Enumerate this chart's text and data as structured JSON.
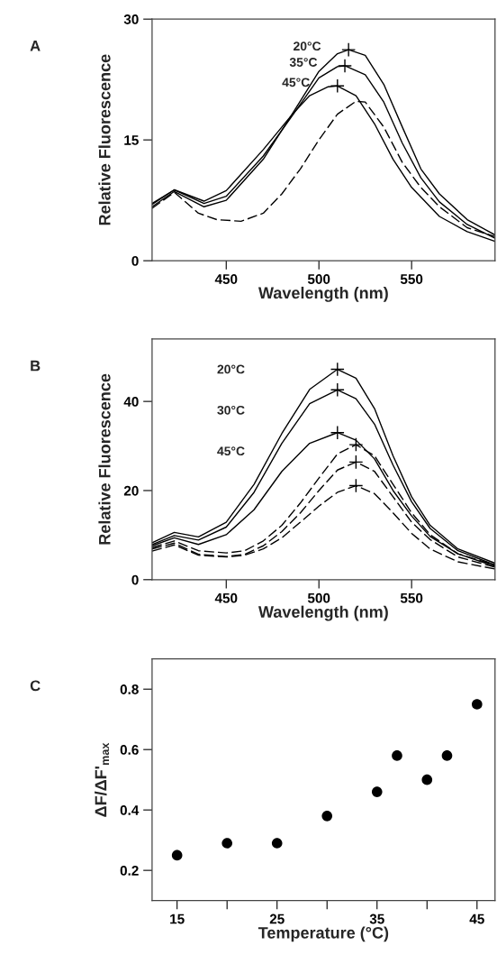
{
  "chart_data": [
    {
      "type": "line",
      "title": "A",
      "xlabel": "Wavelength (nm)",
      "ylabel": "Relative Fluorescence",
      "xlim": [
        410,
        595
      ],
      "xticks": [
        450,
        500,
        550
      ],
      "ylim": [
        0,
        30
      ],
      "yticks": [
        0,
        15,
        30
      ],
      "grid": false,
      "legend": false,
      "series": [
        {
          "type": "line",
          "line_style": "solid",
          "color": "#000000",
          "x": [
            410,
            422,
            438,
            450,
            470,
            485,
            500,
            510,
            516,
            525,
            535,
            545,
            555,
            565,
            580,
            595
          ],
          "values": [
            7.1,
            8.8,
            7.4,
            8.7,
            13.8,
            18.0,
            23.5,
            25.7,
            26.2,
            25.5,
            21.9,
            16.6,
            11.4,
            8.3,
            5.1,
            3.2
          ]
        },
        {
          "type": "line",
          "line_style": "solid",
          "color": "#000000",
          "x": [
            410,
            422,
            438,
            450,
            470,
            485,
            500,
            510,
            514,
            525,
            535,
            545,
            555,
            565,
            580,
            595
          ],
          "values": [
            7.0,
            8.8,
            7.1,
            8.0,
            13.0,
            17.8,
            22.7,
            24.1,
            24.2,
            23.1,
            19.7,
            14.6,
            10.3,
            7.3,
            4.5,
            2.8
          ]
        },
        {
          "type": "line",
          "line_style": "solid",
          "color": "#000000",
          "x": [
            410,
            422,
            438,
            450,
            470,
            485,
            495,
            505,
            510,
            520,
            530,
            540,
            550,
            565,
            580,
            595
          ],
          "values": [
            6.7,
            8.6,
            6.7,
            7.5,
            12.6,
            18.0,
            20.5,
            21.6,
            21.7,
            20.5,
            17.0,
            12.6,
            9.1,
            5.5,
            3.6,
            2.4
          ]
        },
        {
          "type": "line",
          "line_style": "dashed",
          "color": "#000000",
          "x": [
            410,
            422,
            435,
            445,
            458,
            470,
            480,
            490,
            500,
            510,
            520,
            525,
            535,
            545,
            555,
            565,
            580,
            595
          ],
          "values": [
            6.5,
            8.5,
            5.9,
            5.1,
            4.9,
            5.9,
            8.3,
            11.4,
            15.0,
            18.2,
            19.8,
            19.7,
            16.6,
            12.2,
            9.1,
            6.7,
            4.1,
            3.0
          ]
        },
        {
          "type": "scatter",
          "marker": "cross",
          "color": "#000000",
          "x": [
            516,
            514,
            510
          ],
          "values": [
            26.2,
            24.2,
            21.7
          ]
        }
      ],
      "annotations": [
        {
          "text": "20°C",
          "x": 516,
          "y": 26.2
        },
        {
          "text": "35°C",
          "x": 514,
          "y": 24.2
        },
        {
          "text": "45°C",
          "x": 510,
          "y": 21.7
        }
      ]
    },
    {
      "type": "line",
      "title": "B",
      "xlabel": "Wavelength (nm)",
      "ylabel": "Relative Fluorescence",
      "xlim": [
        410,
        595
      ],
      "xticks": [
        450,
        500,
        550
      ],
      "ylim": [
        0,
        54
      ],
      "yticks": [
        0,
        20,
        40
      ],
      "grid": false,
      "legend": false,
      "series": [
        {
          "type": "line",
          "line_style": "solid",
          "color": "#000000",
          "x": [
            410,
            422,
            435,
            450,
            465,
            480,
            495,
            510,
            520,
            530,
            540,
            550,
            560,
            575,
            595
          ],
          "values": [
            8.3,
            10.6,
            9.6,
            12.9,
            21.4,
            32.8,
            42.7,
            47.2,
            45.2,
            38.4,
            27.8,
            18.6,
            12.2,
            6.9,
            3.7
          ]
        },
        {
          "type": "line",
          "line_style": "solid",
          "color": "#000000",
          "x": [
            410,
            422,
            435,
            450,
            465,
            480,
            495,
            510,
            520,
            530,
            540,
            550,
            560,
            575,
            595
          ],
          "values": [
            7.9,
            9.9,
            8.9,
            11.8,
            19.6,
            30.6,
            39.5,
            42.6,
            40.6,
            34.9,
            25.7,
            17.5,
            11.5,
            6.5,
            3.3
          ]
        },
        {
          "type": "line",
          "line_style": "solid",
          "color": "#000000",
          "x": [
            410,
            422,
            435,
            450,
            465,
            480,
            495,
            510,
            520,
            530,
            540,
            550,
            560,
            575,
            595
          ],
          "values": [
            7.6,
            9.4,
            7.9,
            10.1,
            15.7,
            24.3,
            30.6,
            33.0,
            31.3,
            27.1,
            20.0,
            14.3,
            9.7,
            5.8,
            3.0
          ]
        },
        {
          "type": "line",
          "line_style": "dashed",
          "color": "#000000",
          "x": [
            410,
            422,
            435,
            450,
            460,
            470,
            480,
            490,
            500,
            510,
            520,
            530,
            540,
            550,
            560,
            575,
            595
          ],
          "values": [
            7.2,
            8.7,
            6.5,
            6.0,
            6.5,
            8.7,
            12.2,
            17.2,
            22.8,
            28.2,
            30.3,
            27.8,
            21.4,
            15.0,
            10.1,
            5.8,
            3.3
          ]
        },
        {
          "type": "line",
          "line_style": "dashed",
          "color": "#000000",
          "x": [
            410,
            422,
            435,
            450,
            460,
            470,
            480,
            490,
            500,
            510,
            520,
            530,
            540,
            550,
            560,
            575,
            595
          ],
          "values": [
            6.9,
            8.2,
            5.7,
            5.2,
            5.7,
            7.6,
            10.8,
            15.0,
            20.0,
            24.6,
            26.4,
            24.3,
            18.6,
            12.9,
            9.0,
            5.1,
            2.8
          ]
        },
        {
          "type": "line",
          "line_style": "dashed",
          "color": "#000000",
          "x": [
            410,
            422,
            435,
            450,
            460,
            470,
            480,
            490,
            500,
            510,
            520,
            530,
            540,
            550,
            560,
            575,
            595
          ],
          "values": [
            6.4,
            7.8,
            5.5,
            5.1,
            5.5,
            6.9,
            9.4,
            12.9,
            16.5,
            19.6,
            21.1,
            19.3,
            15.0,
            10.4,
            6.9,
            4.0,
            2.4
          ]
        },
        {
          "type": "scatter",
          "marker": "cross",
          "color": "#000000",
          "x": [
            510,
            510,
            510,
            520,
            520,
            520
          ],
          "values": [
            47.2,
            42.6,
            33.0,
            30.3,
            26.4,
            21.1
          ]
        }
      ],
      "annotations": [
        "20°C",
        "30°C",
        "45°C"
      ]
    },
    {
      "type": "scatter",
      "title": "C",
      "xlabel": "Temperature (°C)",
      "ylabel": "ΔF/ΔF'$_{max}$",
      "xlim": [
        12.5,
        46.8
      ],
      "xticks": [
        15,
        {
          "value": 20,
          "label": null
        },
        25,
        {
          "value": 30,
          "label": null
        },
        35,
        {
          "value": 40,
          "label": null
        },
        45
      ],
      "ylim": [
        0.1,
        0.9
      ],
      "yticks": [
        0.2,
        0.4,
        0.6,
        0.8
      ],
      "grid": false,
      "legend": false,
      "marker": "circle",
      "series": [
        {
          "color": "#000000",
          "x": [
            15,
            20,
            25,
            30,
            35,
            37,
            40,
            42,
            45
          ],
          "values": [
            0.25,
            0.29,
            0.29,
            0.38,
            0.46,
            0.58,
            0.5,
            0.58,
            0.75
          ]
        }
      ]
    }
  ]
}
